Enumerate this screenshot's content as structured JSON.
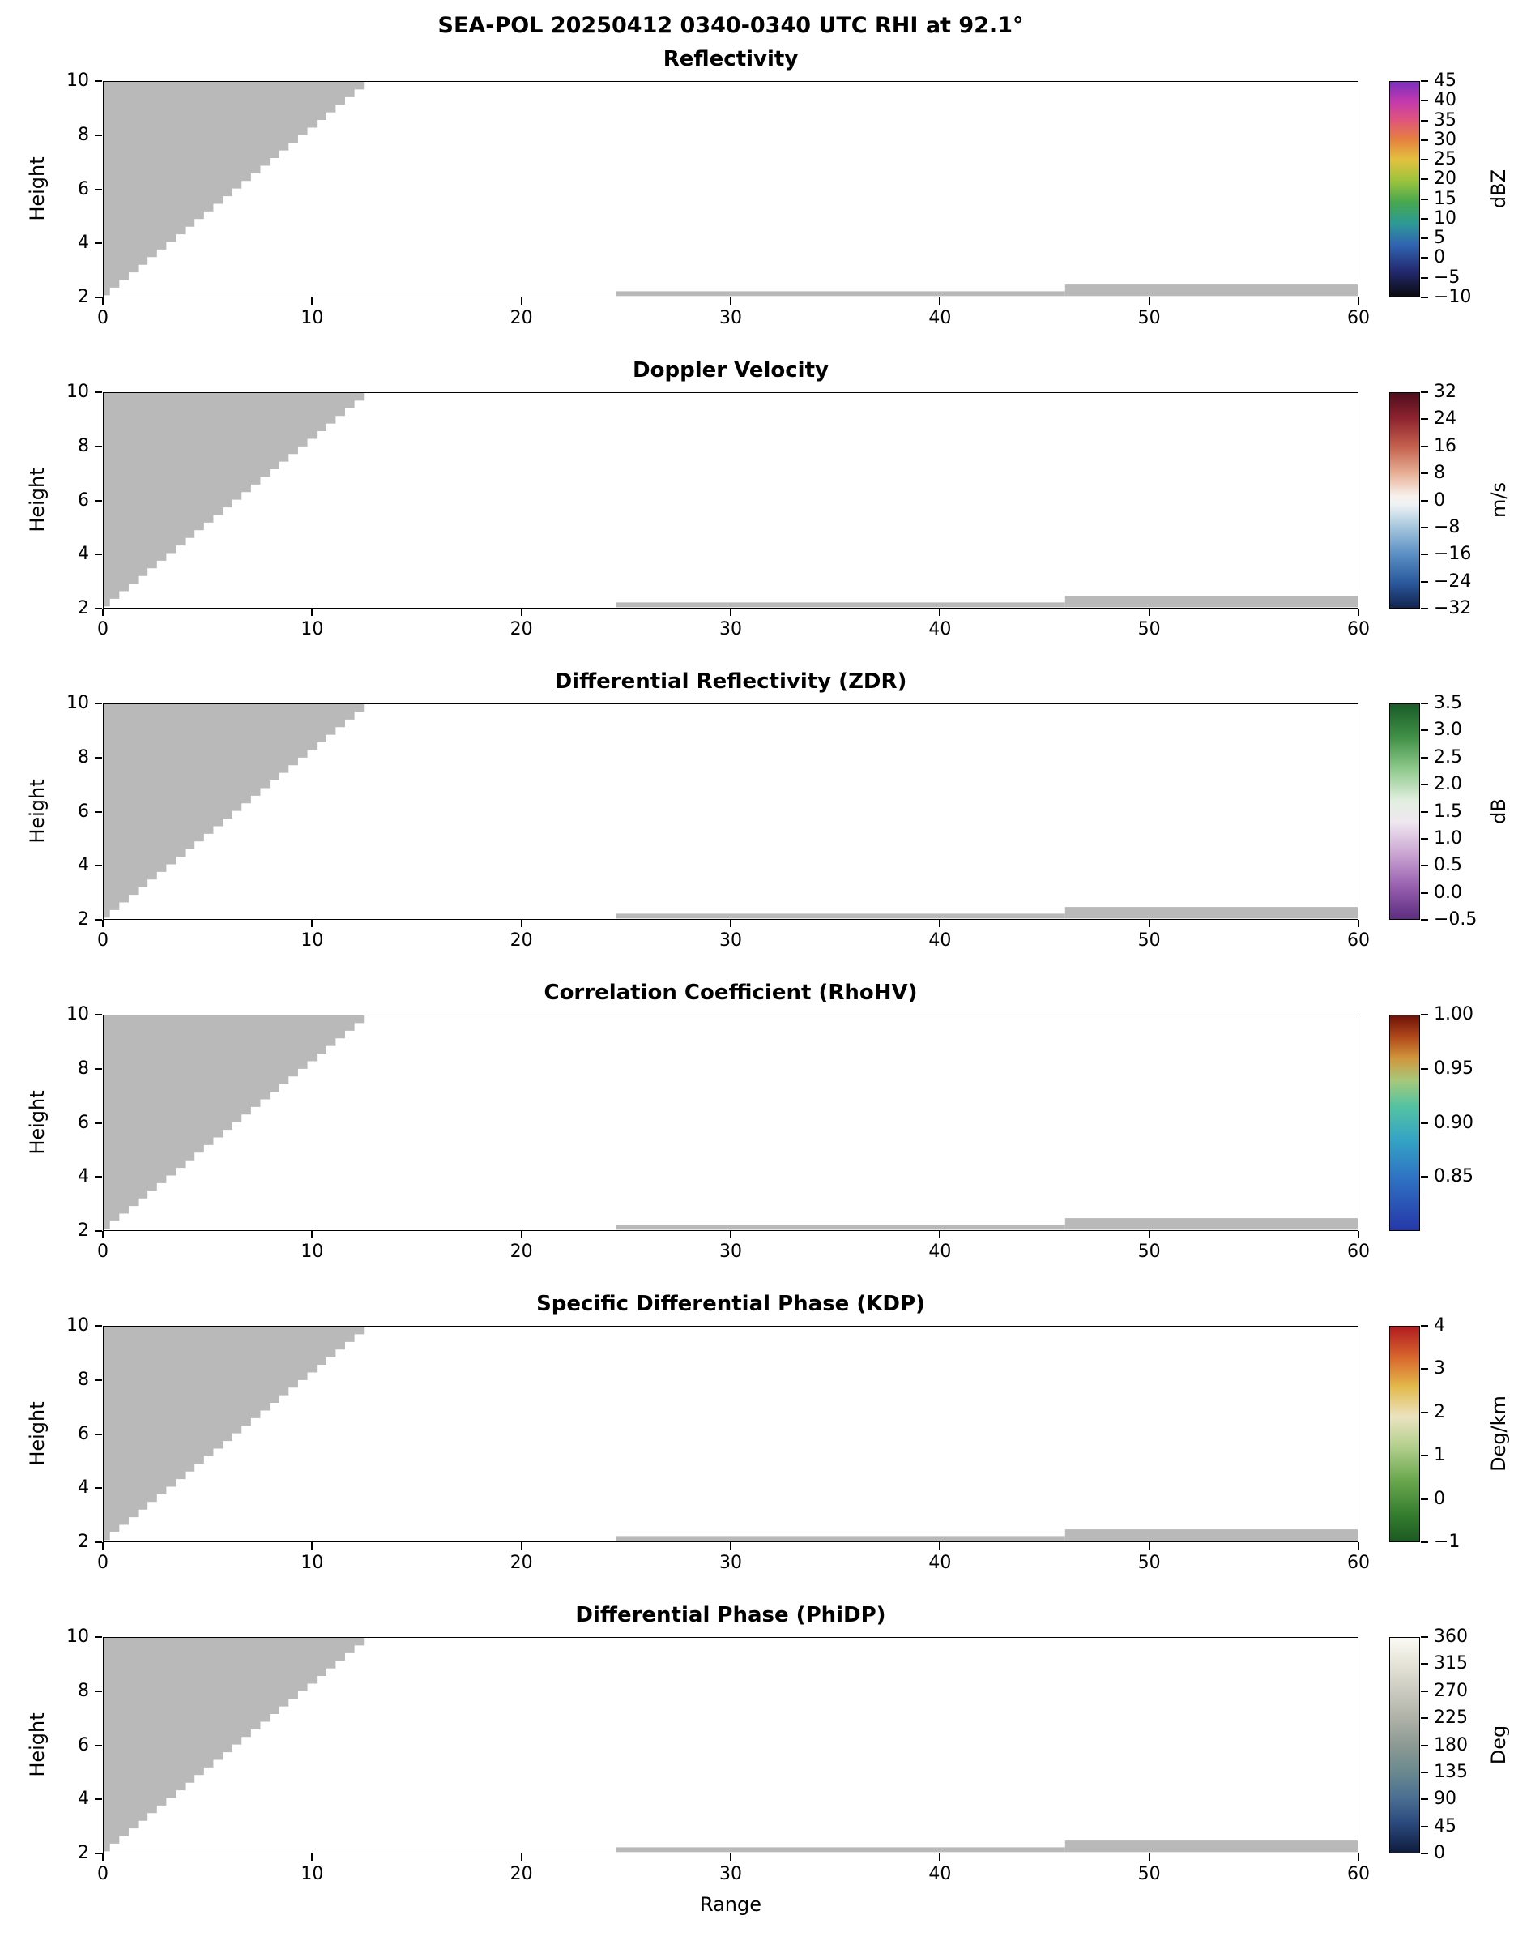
{
  "figure": {
    "suptitle": "SEA-POL 20250412 0340-0340 UTC RHI at 92.1°",
    "background": "#ffffff",
    "mask_color": "#b9b9b9",
    "axis_color": "#000000"
  },
  "chart_data": {
    "type": "heatmap",
    "subtype": "radar-rhi-multipanel",
    "description": "Six vertically stacked radar RHI cross-section panels sharing identical axes. No colored echo is plotted; every panel shows only gray masked/no-data regions: a stepped wedge in the upper-left from range 0 to ~12.9 reaching the top of the plot, plus two thin gray strips near height 2.1 spanning ranges 24.5-46 and a slightly taller one spanning 46-60.",
    "x": {
      "label": "Range",
      "min": 0,
      "max": 60,
      "ticks": [
        0,
        10,
        20,
        30,
        40,
        50,
        60
      ]
    },
    "y": {
      "label": "Height",
      "min": 2,
      "max": 10,
      "ticks": [
        10,
        8,
        6,
        4,
        2
      ]
    },
    "grid": false,
    "legend": "colorbar-right-per-panel",
    "masked_regions": {
      "wedge": {
        "tip_x": 0.3,
        "tip_height": 2.05,
        "end_x": 12.9,
        "end_height": 10,
        "steps": 28
      },
      "strips": [
        {
          "x0": 24.5,
          "x1": 46.0,
          "h0": 2.02,
          "h1": 2.2
        },
        {
          "x0": 46.0,
          "x1": 60.0,
          "h0": 2.02,
          "h1": 2.45
        }
      ]
    },
    "panels": [
      {
        "title": "Reflectivity",
        "colorbar": {
          "unit": "dBZ",
          "min": -10,
          "max": 45,
          "tick_values": [
            45,
            40,
            35,
            30,
            25,
            20,
            15,
            10,
            5,
            0,
            -5,
            -10
          ],
          "tick_labels": [
            "45",
            "40",
            "35",
            "30",
            "25",
            "20",
            "15",
            "10",
            "5",
            "0",
            "−5",
            "−10"
          ],
          "gradient": [
            [
              0,
              "#7a2fbf"
            ],
            [
              9,
              "#c339ae"
            ],
            [
              18,
              "#e0557a"
            ],
            [
              27,
              "#e5823e"
            ],
            [
              36,
              "#e3c13e"
            ],
            [
              46,
              "#9cc43c"
            ],
            [
              56,
              "#47a84e"
            ],
            [
              66,
              "#2d9a96"
            ],
            [
              76,
              "#2f64b0"
            ],
            [
              88,
              "#232a70"
            ],
            [
              100,
              "#0b0b0d"
            ]
          ]
        }
      },
      {
        "title": "Doppler Velocity",
        "colorbar": {
          "unit": "m/s",
          "min": -32,
          "max": 32,
          "tick_values": [
            32,
            24,
            16,
            8,
            0,
            -8,
            -16,
            -24,
            -32
          ],
          "tick_labels": [
            "32",
            "24",
            "16",
            "8",
            "0",
            "−8",
            "−16",
            "−24",
            "−32"
          ],
          "gradient": [
            [
              0,
              "#4f0d1c"
            ],
            [
              12,
              "#8f2430"
            ],
            [
              25,
              "#c4614d"
            ],
            [
              38,
              "#e8b49a"
            ],
            [
              48,
              "#f7f1ec"
            ],
            [
              52,
              "#eef2f5"
            ],
            [
              62,
              "#a8c8dd"
            ],
            [
              75,
              "#5b8fc4"
            ],
            [
              88,
              "#2b5a9e"
            ],
            [
              100,
              "#12254f"
            ]
          ]
        }
      },
      {
        "title": "Differential Reflectivity (ZDR)",
        "colorbar": {
          "unit": "dB",
          "min": -0.5,
          "max": 3.5,
          "tick_values": [
            3.5,
            3.0,
            2.5,
            2.0,
            1.5,
            1.0,
            0.5,
            0.0,
            -0.5
          ],
          "tick_labels": [
            "3.5",
            "3.0",
            "2.5",
            "2.0",
            "1.5",
            "1.0",
            "0.5",
            "0.0",
            "−0.5"
          ],
          "gradient": [
            [
              0,
              "#1a5c28"
            ],
            [
              15,
              "#3f8f46"
            ],
            [
              30,
              "#8ec98b"
            ],
            [
              45,
              "#e2efe0"
            ],
            [
              55,
              "#efe7f0"
            ],
            [
              70,
              "#c9a3d1"
            ],
            [
              85,
              "#975fae"
            ],
            [
              100,
              "#5c2d80"
            ]
          ]
        }
      },
      {
        "title": "Correlation Coefficient (RhoHV)",
        "colorbar": {
          "unit": "",
          "min": 0.8,
          "max": 1.0,
          "tick_values": [
            1.0,
            0.95,
            0.9,
            0.85
          ],
          "tick_labels": [
            "1.00",
            "0.95",
            "0.90",
            "0.85"
          ],
          "gradient": [
            [
              0,
              "#6e1007"
            ],
            [
              10,
              "#b0491a"
            ],
            [
              20,
              "#d1963c"
            ],
            [
              30,
              "#a8c878"
            ],
            [
              42,
              "#55c4a0"
            ],
            [
              58,
              "#34a4c4"
            ],
            [
              75,
              "#2f74c4"
            ],
            [
              100,
              "#2638a8"
            ]
          ]
        }
      },
      {
        "title": "Specific Differential Phase (KDP)",
        "colorbar": {
          "unit": "Deg/km",
          "min": -1,
          "max": 4,
          "tick_values": [
            4,
            3,
            2,
            1,
            0,
            -1
          ],
          "tick_labels": [
            "4",
            "3",
            "2",
            "1",
            "0",
            "−1"
          ],
          "gradient": [
            [
              0,
              "#b01c20"
            ],
            [
              14,
              "#d8652c"
            ],
            [
              28,
              "#e2ba4a"
            ],
            [
              42,
              "#ebe3c0"
            ],
            [
              56,
              "#b2cf8c"
            ],
            [
              72,
              "#68a64c"
            ],
            [
              88,
              "#347c2e"
            ],
            [
              100,
              "#1c5a22"
            ]
          ]
        }
      },
      {
        "title": "Differential Phase (PhiDP)",
        "colorbar": {
          "unit": "Deg",
          "min": 0,
          "max": 360,
          "tick_values": [
            360,
            315,
            270,
            225,
            180,
            135,
            90,
            45,
            0
          ],
          "tick_labels": [
            "360",
            "315",
            "270",
            "225",
            "180",
            "135",
            "90",
            "45",
            "0"
          ],
          "gradient": [
            [
              0,
              "#fbfbf5"
            ],
            [
              12,
              "#e6e4d8"
            ],
            [
              25,
              "#cbcac0"
            ],
            [
              38,
              "#adb0a6"
            ],
            [
              50,
              "#8c9a94"
            ],
            [
              62,
              "#6b8a8e"
            ],
            [
              74,
              "#4c7092"
            ],
            [
              86,
              "#2c4a7e"
            ],
            [
              100,
              "#0e1c3e"
            ]
          ]
        }
      }
    ]
  }
}
